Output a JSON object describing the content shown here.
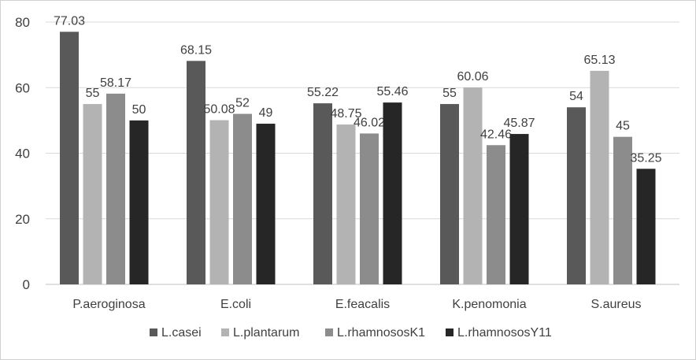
{
  "chart_data": {
    "type": "bar",
    "categories": [
      "P.aeroginosa",
      "E.coli",
      "E.feacalis",
      "K.penomonia",
      "S.aureus"
    ],
    "series": [
      {
        "name": "L.casei",
        "values": [
          77.03,
          68.15,
          55.22,
          55,
          54
        ],
        "labels": [
          "77.03",
          "68.15",
          "55.22",
          "55",
          "54"
        ],
        "color": "#595959"
      },
      {
        "name": "L.plantarum",
        "values": [
          55,
          50.08,
          48.75,
          60.06,
          65.13
        ],
        "labels": [
          "55",
          "50.08",
          "48.75",
          "60.06",
          "65.13"
        ],
        "color": "#b3b3b3"
      },
      {
        "name": "L.rhamnososK1",
        "values": [
          58.17,
          52,
          46.02,
          42.46,
          45
        ],
        "labels": [
          "58.17",
          "52",
          "46.02",
          "42.46",
          "45"
        ],
        "color": "#8c8c8c"
      },
      {
        "name": "L.rhamnososY11",
        "values": [
          50,
          49,
          55.46,
          45.87,
          35.25
        ],
        "labels": [
          "50",
          "49",
          "55.46",
          "45.87",
          "35.25"
        ],
        "color": "#262626"
      }
    ],
    "yticks": [
      "0",
      "20",
      "40",
      "60",
      "80"
    ],
    "ylim": [
      0,
      80
    ],
    "grid": true,
    "legend": "bottom",
    "title": "",
    "xlabel": "",
    "ylabel": ""
  }
}
